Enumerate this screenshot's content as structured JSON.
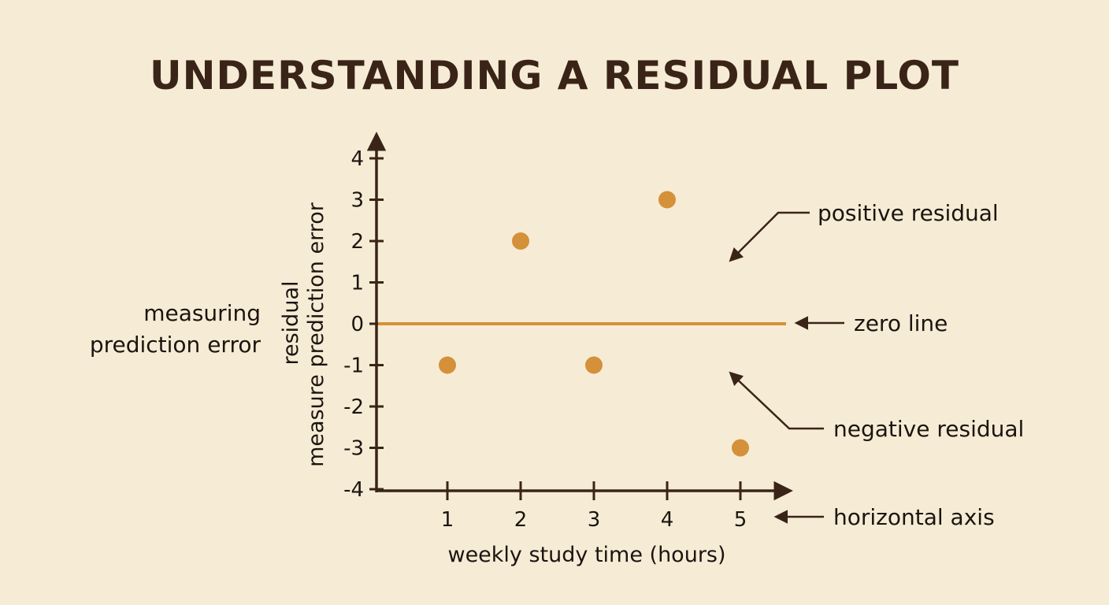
{
  "chart_data": {
    "type": "scatter",
    "title": "UNDERSTANDING A RESIDUAL PLOT",
    "xlabel": "weekly study time (hours)",
    "ylabel_lines": [
      "residual",
      "measure prediction error"
    ],
    "side_label_lines": [
      "measuring",
      "prediction error"
    ],
    "x_ticks": [
      1,
      2,
      3,
      4,
      5
    ],
    "y_ticks": [
      4,
      3,
      2,
      1,
      0,
      -1,
      -2,
      -3,
      -4
    ],
    "ylim": [
      -4,
      4
    ],
    "grid": false,
    "zero_line": true,
    "points": [
      {
        "x": 1,
        "y": -1
      },
      {
        "x": 2,
        "y": 2
      },
      {
        "x": 3,
        "y": -1
      },
      {
        "x": 4,
        "y": 3
      },
      {
        "x": 5,
        "y": -3
      }
    ],
    "annotations": {
      "positive": "positive residual",
      "zero": "zero line",
      "negative": "negative residual",
      "horizontal": "horizontal axis"
    },
    "colors": {
      "point": "#d4913a",
      "zero_line": "#d4913a",
      "axis": "#3a2418",
      "background": "#f6ecd5"
    }
  }
}
